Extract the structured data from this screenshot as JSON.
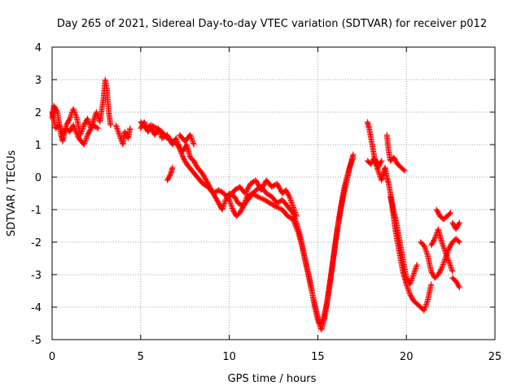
{
  "chart_data": {
    "type": "scatter",
    "title": "Day 265 of 2021, Sidereal Day-to-day VTEC variation (SDTVAR) for receiver p012",
    "xlabel": "GPS time / hours",
    "ylabel": "SDTVAR / TECUs",
    "xlim": [
      0,
      25
    ],
    "ylim": [
      -5,
      4
    ],
    "xticks": [
      0,
      5,
      10,
      15,
      20,
      25
    ],
    "yticks": [
      -5,
      -4,
      -3,
      -2,
      -1,
      0,
      1,
      2,
      3,
      4
    ],
    "grid": true,
    "legend": "none",
    "marker": "+",
    "series": [
      {
        "name": "SDTVAR p012",
        "color": "#ff0000",
        "segments": [
          [
            [
              0.0,
              1.8
            ],
            [
              0.1,
              2.2
            ],
            [
              0.3,
              2.0
            ],
            [
              0.5,
              1.3
            ],
            [
              0.6,
              1.1
            ],
            [
              0.8,
              1.6
            ],
            [
              1.0,
              1.8
            ],
            [
              1.2,
              2.1
            ],
            [
              1.4,
              1.8
            ],
            [
              1.6,
              1.3
            ],
            [
              1.8,
              1.6
            ],
            [
              2.0,
              1.8
            ],
            [
              2.2,
              1.5
            ],
            [
              2.5,
              2.0
            ],
            [
              2.7,
              1.7
            ],
            [
              2.9,
              2.4
            ],
            [
              3.0,
              3.0
            ],
            [
              3.1,
              2.7
            ],
            [
              3.2,
              2.0
            ],
            [
              3.3,
              1.6
            ]
          ],
          [
            [
              0.0,
              2.0
            ],
            [
              0.2,
              1.5
            ],
            [
              0.4,
              1.6
            ],
            [
              0.6,
              1.3
            ],
            [
              0.8,
              1.5
            ],
            [
              1.0,
              1.4
            ],
            [
              1.2,
              1.6
            ],
            [
              1.5,
              1.2
            ],
            [
              1.8,
              1.0
            ],
            [
              2.0,
              1.3
            ],
            [
              2.3,
              1.6
            ],
            [
              2.6,
              1.5
            ]
          ],
          [
            [
              3.6,
              1.6
            ],
            [
              3.8,
              1.3
            ],
            [
              4.0,
              1.0
            ],
            [
              4.1,
              1.4
            ],
            [
              4.3,
              1.2
            ],
            [
              4.4,
              1.5
            ]
          ],
          [
            [
              5.0,
              1.5
            ],
            [
              5.2,
              1.7
            ],
            [
              5.4,
              1.4
            ],
            [
              5.6,
              1.5
            ],
            [
              5.8,
              1.3
            ],
            [
              6.0,
              1.5
            ],
            [
              6.2,
              1.2
            ],
            [
              6.5,
              1.3
            ],
            [
              6.8,
              1.0
            ],
            [
              7.0,
              1.2
            ],
            [
              7.2,
              0.9
            ],
            [
              7.4,
              0.8
            ],
            [
              7.6,
              1.0
            ],
            [
              7.8,
              0.6
            ],
            [
              8.0,
              0.5
            ],
            [
              8.2,
              0.3
            ],
            [
              8.5,
              0.1
            ],
            [
              8.8,
              -0.2
            ],
            [
              9.0,
              -0.4
            ],
            [
              9.2,
              -0.6
            ],
            [
              9.4,
              -0.8
            ],
            [
              9.6,
              -1.0
            ],
            [
              9.8,
              -0.7
            ],
            [
              10.0,
              -0.5
            ],
            [
              10.3,
              -0.6
            ],
            [
              10.5,
              -0.8
            ],
            [
              10.8,
              -0.9
            ],
            [
              11.0,
              -0.6
            ],
            [
              11.3,
              -0.5
            ],
            [
              11.6,
              -0.6
            ],
            [
              12.0,
              -0.7
            ],
            [
              12.3,
              -0.8
            ],
            [
              12.6,
              -0.9
            ],
            [
              13.0,
              -1.0
            ],
            [
              13.3,
              -1.2
            ],
            [
              13.6,
              -1.3
            ],
            [
              13.9,
              -1.7
            ],
            [
              14.1,
              -2.1
            ],
            [
              14.3,
              -2.6
            ],
            [
              14.5,
              -3.1
            ],
            [
              14.7,
              -3.6
            ],
            [
              14.9,
              -4.1
            ],
            [
              15.1,
              -4.5
            ],
            [
              15.3,
              -4.4
            ],
            [
              15.5,
              -3.9
            ],
            [
              15.7,
              -3.2
            ],
            [
              15.9,
              -2.4
            ],
            [
              16.1,
              -1.6
            ],
            [
              16.3,
              -0.9
            ],
            [
              16.5,
              -0.3
            ],
            [
              16.7,
              0.1
            ],
            [
              16.9,
              0.5
            ],
            [
              17.0,
              0.7
            ]
          ],
          [
            [
              5.0,
              1.7
            ],
            [
              5.3,
              1.5
            ],
            [
              5.6,
              1.6
            ],
            [
              5.9,
              1.5
            ],
            [
              6.2,
              1.4
            ],
            [
              6.5,
              1.2
            ],
            [
              6.8,
              1.1
            ],
            [
              7.1,
              1.0
            ],
            [
              7.4,
              0.6
            ],
            [
              7.6,
              0.4
            ],
            [
              7.9,
              0.2
            ],
            [
              8.2,
              0.0
            ],
            [
              8.5,
              -0.2
            ],
            [
              8.8,
              -0.3
            ],
            [
              9.1,
              -0.5
            ],
            [
              9.4,
              -0.4
            ],
            [
              9.7,
              -0.5
            ],
            [
              10.0,
              -0.7
            ],
            [
              10.2,
              -1.0
            ],
            [
              10.4,
              -1.2
            ],
            [
              10.6,
              -1.1
            ],
            [
              10.9,
              -0.8
            ],
            [
              11.2,
              -0.6
            ],
            [
              11.5,
              -0.4
            ],
            [
              11.8,
              -0.3
            ],
            [
              12.1,
              -0.5
            ],
            [
              12.4,
              -0.6
            ],
            [
              12.7,
              -0.8
            ],
            [
              13.0,
              -0.7
            ],
            [
              13.3,
              -0.9
            ],
            [
              13.6,
              -1.1
            ],
            [
              13.8,
              -1.4
            ],
            [
              14.0,
              -1.8
            ],
            [
              14.2,
              -2.3
            ],
            [
              14.4,
              -2.8
            ],
            [
              14.6,
              -3.3
            ],
            [
              14.8,
              -3.9
            ],
            [
              15.0,
              -4.4
            ],
            [
              15.2,
              -4.7
            ],
            [
              15.4,
              -4.3
            ],
            [
              15.6,
              -3.6
            ],
            [
              15.8,
              -2.8
            ],
            [
              16.0,
              -2.0
            ],
            [
              16.2,
              -1.3
            ],
            [
              16.4,
              -0.7
            ],
            [
              16.6,
              -0.2
            ],
            [
              16.8,
              0.3
            ],
            [
              17.0,
              0.6
            ]
          ],
          [
            [
              6.5,
              -0.1
            ],
            [
              6.7,
              0.1
            ],
            [
              6.8,
              0.3
            ]
          ],
          [
            [
              7.2,
              1.3
            ],
            [
              7.5,
              1.1
            ],
            [
              7.8,
              1.3
            ],
            [
              8.0,
              1.0
            ]
          ],
          [
            [
              10.0,
              -0.6
            ],
            [
              10.3,
              -0.4
            ],
            [
              10.6,
              -0.3
            ],
            [
              10.9,
              -0.5
            ],
            [
              11.2,
              -0.2
            ],
            [
              11.5,
              -0.1
            ],
            [
              11.8,
              -0.4
            ],
            [
              12.1,
              -0.1
            ],
            [
              12.4,
              -0.3
            ],
            [
              12.7,
              -0.2
            ],
            [
              13.0,
              -0.5
            ],
            [
              13.2,
              -0.4
            ],
            [
              13.4,
              -0.6
            ],
            [
              13.6,
              -0.9
            ],
            [
              13.8,
              -1.2
            ]
          ],
          [
            [
              17.8,
              1.7
            ],
            [
              17.9,
              1.5
            ],
            [
              18.0,
              1.2
            ],
            [
              18.1,
              0.9
            ],
            [
              18.2,
              0.6
            ],
            [
              18.3,
              0.4
            ],
            [
              18.4,
              0.2
            ],
            [
              18.6,
              -0.1
            ],
            [
              18.7,
              0.1
            ],
            [
              18.8,
              0.3
            ],
            [
              18.9,
              0.0
            ],
            [
              19.0,
              -0.2
            ],
            [
              19.1,
              -0.5
            ],
            [
              19.2,
              -0.8
            ],
            [
              19.3,
              -1.1
            ],
            [
              19.4,
              -1.3
            ],
            [
              19.5,
              -1.6
            ],
            [
              19.6,
              -1.9
            ],
            [
              19.7,
              -2.2
            ],
            [
              19.8,
              -2.5
            ],
            [
              19.9,
              -2.8
            ],
            [
              20.0,
              -3.1
            ],
            [
              20.2,
              -3.3
            ],
            [
              20.4,
              -3.0
            ],
            [
              20.6,
              -2.7
            ]
          ],
          [
            [
              17.8,
              0.5
            ],
            [
              18.0,
              0.4
            ],
            [
              18.2,
              0.6
            ],
            [
              18.4,
              0.3
            ],
            [
              18.6,
              0.5
            ]
          ],
          [
            [
              18.9,
              1.3
            ],
            [
              19.0,
              0.8
            ],
            [
              19.1,
              0.5
            ],
            [
              19.3,
              0.6
            ],
            [
              19.5,
              0.4
            ],
            [
              19.7,
              0.3
            ],
            [
              19.9,
              0.2
            ]
          ],
          [
            [
              19.1,
              -0.6
            ],
            [
              19.2,
              -0.9
            ],
            [
              19.3,
              -1.3
            ],
            [
              19.4,
              -1.7
            ],
            [
              19.5,
              -2.0
            ],
            [
              19.6,
              -2.3
            ],
            [
              19.7,
              -2.6
            ],
            [
              19.8,
              -2.9
            ],
            [
              19.9,
              -3.1
            ],
            [
              20.0,
              -3.3
            ],
            [
              20.2,
              -3.6
            ],
            [
              20.4,
              -3.8
            ],
            [
              20.6,
              -3.9
            ],
            [
              20.8,
              -4.0
            ],
            [
              21.0,
              -4.1
            ],
            [
              21.2,
              -3.8
            ],
            [
              21.4,
              -3.3
            ]
          ],
          [
            [
              20.8,
              -2.0
            ],
            [
              21.0,
              -2.1
            ],
            [
              21.2,
              -2.4
            ],
            [
              21.4,
              -2.9
            ],
            [
              21.6,
              -3.1
            ],
            [
              21.8,
              -3.0
            ],
            [
              22.0,
              -2.8
            ],
            [
              22.2,
              -2.5
            ],
            [
              22.4,
              -2.2
            ],
            [
              22.6,
              -2.0
            ],
            [
              22.8,
              -1.9
            ],
            [
              23.0,
              -2.0
            ]
          ],
          [
            [
              21.4,
              -2.1
            ],
            [
              21.6,
              -1.9
            ],
            [
              21.8,
              -1.6
            ],
            [
              22.0,
              -2.0
            ],
            [
              22.2,
              -2.3
            ],
            [
              22.4,
              -2.6
            ],
            [
              22.6,
              -2.9
            ]
          ],
          [
            [
              21.7,
              -1.0
            ],
            [
              21.9,
              -1.2
            ],
            [
              22.1,
              -1.3
            ],
            [
              22.3,
              -1.2
            ],
            [
              22.5,
              -1.1
            ]
          ],
          [
            [
              22.6,
              -3.1
            ],
            [
              22.8,
              -3.2
            ],
            [
              23.0,
              -3.4
            ]
          ],
          [
            [
              22.6,
              -1.4
            ],
            [
              22.8,
              -1.6
            ],
            [
              23.0,
              -1.4
            ]
          ]
        ]
      }
    ]
  }
}
